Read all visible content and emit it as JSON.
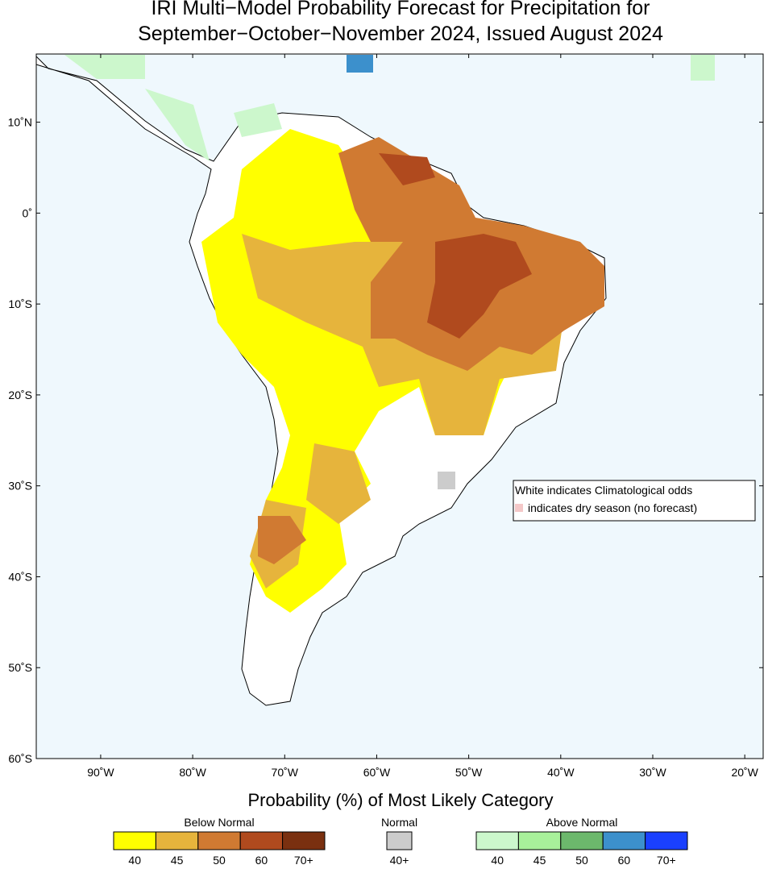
{
  "title": [
    "IRI Multi−Model Probability Forecast for Precipitation for",
    "September−October−November 2024, Issued August 2024"
  ],
  "map": {
    "lon_range": [
      -97,
      -18
    ],
    "lat_range": [
      -60,
      17.5
    ],
    "lon_ticks": [
      {
        "value": -90,
        "label": "90˚W"
      },
      {
        "value": -80,
        "label": "80˚W"
      },
      {
        "value": -70,
        "label": "70˚W"
      },
      {
        "value": -60,
        "label": "60˚W"
      },
      {
        "value": -50,
        "label": "50˚W"
      },
      {
        "value": -40,
        "label": "40˚W"
      },
      {
        "value": -30,
        "label": "30˚W"
      },
      {
        "value": -20,
        "label": "20˚W"
      }
    ],
    "lat_ticks": [
      {
        "value": 10,
        "label": "10˚N"
      },
      {
        "value": 0,
        "label": "0˚"
      },
      {
        "value": -10,
        "label": "10˚S"
      },
      {
        "value": -20,
        "label": "20˚S"
      },
      {
        "value": -30,
        "label": "30˚S"
      },
      {
        "value": -40,
        "label": "40˚S"
      },
      {
        "value": -50,
        "label": "50˚S"
      },
      {
        "value": -60,
        "label": "60˚S"
      }
    ]
  },
  "note": [
    "White indicates Climatological odds",
    "indicates dry season (no forecast)"
  ],
  "legend": {
    "title": "Probability (%) of Most Likely Category",
    "groups": [
      {
        "name": "Below Normal",
        "colors": [
          "#ffff00",
          "#e6b43c",
          "#d07a32",
          "#b04a1e",
          "#7a3010"
        ],
        "labels": [
          "40",
          "45",
          "50",
          "60",
          "70+"
        ]
      },
      {
        "name": "Normal",
        "colors": [
          "#cccccc"
        ],
        "labels": [
          "40+"
        ]
      },
      {
        "name": "Above Normal",
        "colors": [
          "#ccf7cc",
          "#a8f09a",
          "#6cb86c",
          "#3c90cc",
          "#1a40ff"
        ],
        "labels": [
          "40",
          "45",
          "50",
          "60",
          "70+"
        ]
      }
    ]
  }
}
